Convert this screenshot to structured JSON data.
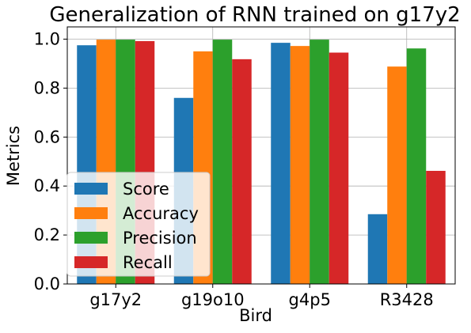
{
  "chart_data": {
    "type": "bar",
    "title": "Generalization of RNN trained on g17y2",
    "xlabel": "Bird",
    "ylabel": "Metrics",
    "categories": [
      "g17y2",
      "g19o10",
      "g4p5",
      "R3428"
    ],
    "series": [
      {
        "name": "Score",
        "color": "#1f77b4",
        "values": [
          0.975,
          0.76,
          0.985,
          0.285
        ]
      },
      {
        "name": "Accuracy",
        "color": "#ff7f0e",
        "values": [
          0.998,
          0.95,
          0.972,
          0.888
        ]
      },
      {
        "name": "Precision",
        "color": "#2ca02c",
        "values": [
          0.998,
          0.998,
          0.998,
          0.962
        ]
      },
      {
        "name": "Recall",
        "color": "#d62728",
        "values": [
          0.992,
          0.918,
          0.945,
          0.462
        ]
      }
    ],
    "ylim": [
      0,
      1.05
    ],
    "yticks": [
      0.0,
      0.2,
      0.4,
      0.6,
      0.8,
      1.0
    ],
    "ytick_labels": [
      "0.0",
      "0.2",
      "0.4",
      "0.6",
      "0.8",
      "1.0"
    ],
    "grid": true,
    "legend_position": "lower-left"
  }
}
